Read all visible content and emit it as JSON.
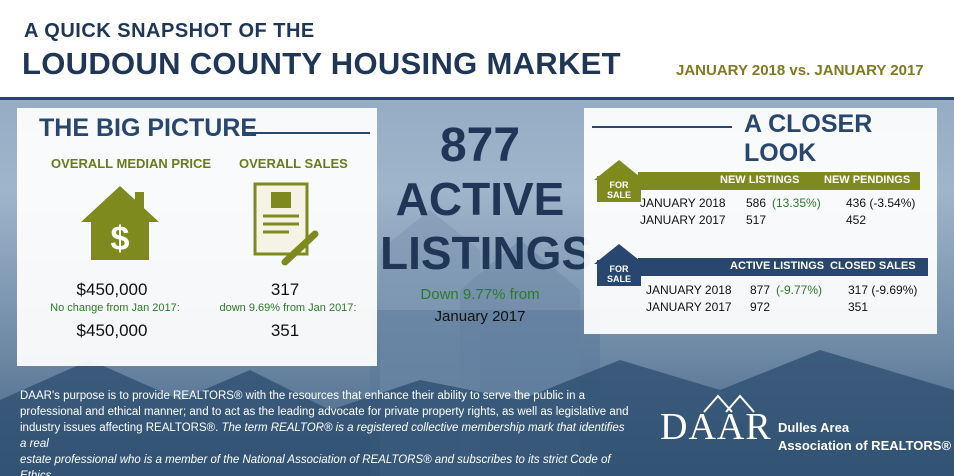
{
  "header": {
    "subtitle": "A QUICK SNAPSHOT OF THE",
    "title": "LOUDOUN COUNTY HOUSING MARKET",
    "date_range": "JANUARY 2018 vs. JANUARY 2017"
  },
  "big_picture": {
    "title": "THE BIG PICTURE",
    "median": {
      "heading": "OVERALL MEDIAN PRICE",
      "value": "$450,000",
      "note": "No change from Jan 2017:",
      "prior_value": "$450,000"
    },
    "sales": {
      "heading": "OVERALL SALES",
      "value": "317",
      "note": "down 9.69% from Jan 2017:",
      "prior_value": "351"
    }
  },
  "center": {
    "number": "877",
    "line1": "ACTIVE",
    "line2": "LISTINGS",
    "change": "Down 9.77% from",
    "period": "January 2017"
  },
  "closer_look": {
    "title": "A CLOSER LOOK",
    "badge": "FOR SALE",
    "table1": {
      "col1": "NEW LISTINGS",
      "col2": "NEW PENDINGS",
      "rows": [
        {
          "label": "JANUARY 2018",
          "v1": "586",
          "v1_change": "(13.35%)",
          "v2": "436 (-3.54%)"
        },
        {
          "label": "JANUARY 2017",
          "v1": "517",
          "v1_change": "",
          "v2": "452"
        }
      ]
    },
    "table2": {
      "col1": "ACTIVE LISTINGS",
      "col2": "CLOSED SALES",
      "rows": [
        {
          "label": "JANUARY 2018",
          "v1": "877",
          "v1_change": "(-9.77%)",
          "v2": "317 (-9.69%)"
        },
        {
          "label": "JANUARY 2017",
          "v1": "972",
          "v1_change": "",
          "v2": "351"
        }
      ]
    }
  },
  "footer": {
    "line1": "DAAR's purpose is to provide REALTORS® with the resources that enhance their ability to serve the public in a",
    "line2": "professional and ethical manner; and to act as the leading advocate for private property rights, as well as legislative and",
    "line3a": "industry issues affecting REALTORS®.",
    "line3b": "The term REALTOR® is a registered collective membership mark that identifies a real",
    "line4": "estate professional who is a member of the National Association of REALTORS® and subscribes to its strict Code of Ethics."
  },
  "logo": {
    "mark": "DAAR",
    "name1": "Dulles Area",
    "name2": "Association of REALTORS®"
  },
  "colors": {
    "navy": "#1f3656",
    "olive": "#7f8a1e",
    "green": "#2c7a29"
  }
}
